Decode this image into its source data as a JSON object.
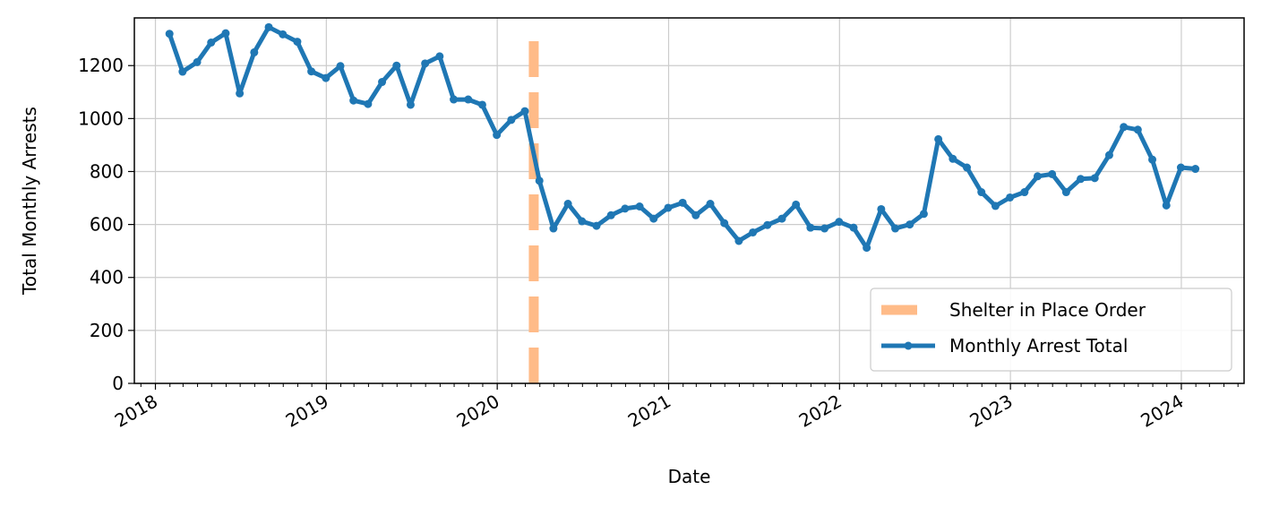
{
  "chart_data": {
    "type": "line",
    "title": "",
    "xlabel": "Date",
    "ylabel": "Total Monthly Arrests",
    "x_ticks": [
      "2018",
      "2019",
      "2020",
      "2021",
      "2022",
      "2023",
      "2024"
    ],
    "y_ticks": [
      0,
      200,
      400,
      600,
      800,
      1000,
      1200
    ],
    "ylim": [
      0,
      1380
    ],
    "xlim": [
      "2017-11-17",
      "2024-05-14"
    ],
    "grid": true,
    "legend_position": "lower-right",
    "vline": {
      "date": "2020-03-19",
      "name": "Shelter in Place Order",
      "color": "#ffbb88"
    },
    "series": [
      {
        "name": "Monthly Arrest Total",
        "color": "#1f77b4",
        "x": [
          "2018-01-31",
          "2018-02-28",
          "2018-03-31",
          "2018-04-30",
          "2018-05-31",
          "2018-06-30",
          "2018-07-31",
          "2018-08-31",
          "2018-09-30",
          "2018-10-31",
          "2018-11-30",
          "2018-12-31",
          "2019-01-31",
          "2019-02-28",
          "2019-03-31",
          "2019-04-30",
          "2019-05-31",
          "2019-06-30",
          "2019-07-31",
          "2019-08-31",
          "2019-09-30",
          "2019-10-31",
          "2019-11-30",
          "2019-12-31",
          "2020-01-31",
          "2020-02-29",
          "2020-03-31",
          "2020-04-30",
          "2020-05-31",
          "2020-06-30",
          "2020-07-31",
          "2020-08-31",
          "2020-09-30",
          "2020-10-31",
          "2020-11-30",
          "2020-12-31",
          "2021-01-31",
          "2021-02-28",
          "2021-03-31",
          "2021-04-30",
          "2021-05-31",
          "2021-06-30",
          "2021-07-31",
          "2021-08-31",
          "2021-09-30",
          "2021-10-31",
          "2021-11-30",
          "2021-12-31",
          "2022-01-31",
          "2022-02-28",
          "2022-03-31",
          "2022-04-30",
          "2022-05-31",
          "2022-06-30",
          "2022-07-31",
          "2022-08-31",
          "2022-09-30",
          "2022-10-31",
          "2022-11-30",
          "2022-12-31",
          "2023-01-31",
          "2023-02-28",
          "2023-03-31",
          "2023-04-30",
          "2023-05-31",
          "2023-06-30",
          "2023-07-31",
          "2023-08-31",
          "2023-09-30",
          "2023-10-31",
          "2023-11-30",
          "2023-12-31",
          "2024-01-31"
        ],
        "values": [
          1320,
          1177,
          1213,
          1287,
          1322,
          1095,
          1250,
          1345,
          1318,
          1290,
          1178,
          1153,
          1198,
          1068,
          1055,
          1138,
          1200,
          1052,
          1208,
          1235,
          1072,
          1072,
          1052,
          938,
          995,
          1028,
          765,
          585,
          678,
          612,
          595,
          635,
          660,
          668,
          622,
          663,
          682,
          635,
          678,
          605,
          538,
          570,
          598,
          622,
          675,
          588,
          585,
          610,
          588,
          512,
          658,
          585,
          600,
          640,
          922,
          848,
          815,
          722,
          670,
          702,
          722,
          782,
          790,
          722,
          772,
          775,
          862,
          968,
          958,
          845,
          672,
          815,
          810
        ]
      }
    ]
  }
}
